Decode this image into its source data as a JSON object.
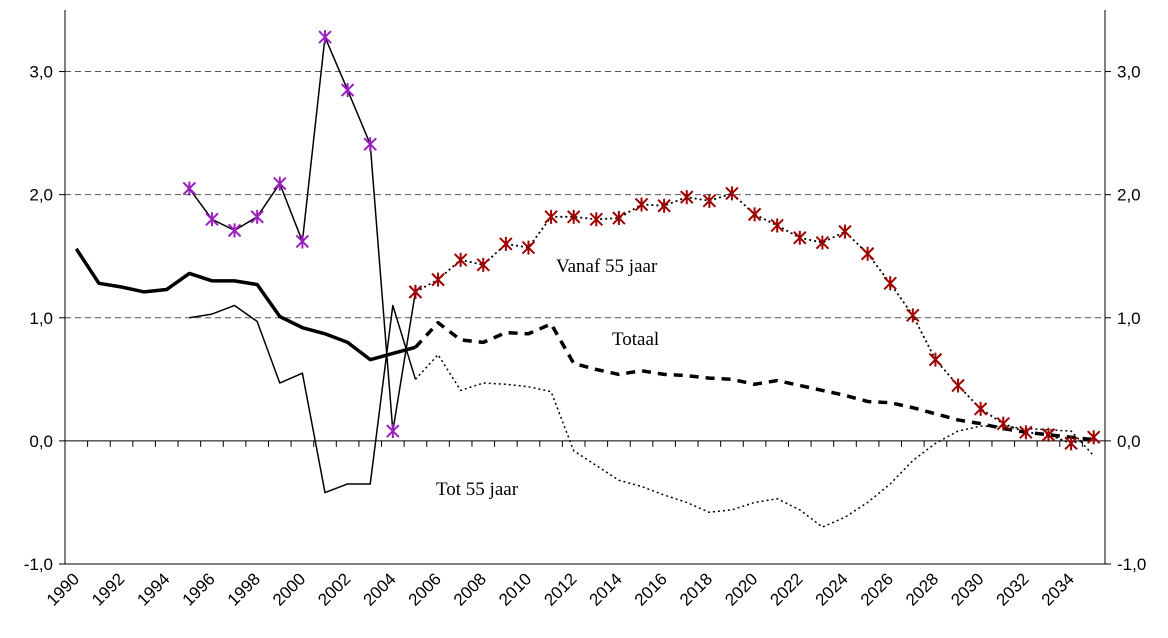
{
  "chart_data": {
    "type": "line",
    "categories": [
      "1990",
      null,
      "1992",
      null,
      "1994",
      null,
      "1996",
      null,
      "1998",
      null,
      "2000",
      null,
      "2002",
      null,
      "2004",
      null,
      "2006",
      null,
      "2008",
      null,
      "2010",
      null,
      "2012",
      null,
      "2014",
      null,
      "2016",
      null,
      "2018",
      null,
      "2020",
      null,
      "2022",
      null,
      "2024",
      null,
      "2026",
      null,
      "2028",
      null,
      "2030",
      null,
      "2032",
      null,
      "2034",
      null
    ],
    "ylim": [
      -1,
      3.5
    ],
    "yticks": [
      {
        "value": -1,
        "label": "-1,0"
      },
      {
        "value": 0,
        "label": "0,0"
      },
      {
        "value": 1,
        "label": "1,0"
      },
      {
        "value": 2,
        "label": "2,0"
      },
      {
        "value": 3,
        "label": "3,0"
      }
    ],
    "y2lim": [
      -1,
      3.5
    ],
    "y2ticks": [
      {
        "value": -1,
        "label": "-1,0"
      },
      {
        "value": 0,
        "label": "0,0"
      },
      {
        "value": 1,
        "label": "1,0"
      },
      {
        "value": 2,
        "label": "2,0"
      },
      {
        "value": 3,
        "label": "3,0"
      }
    ],
    "grid": true,
    "annotations": [
      "Vanaf 55 jaar",
      "Totaal",
      "Tot 55 jaar"
    ],
    "series": [
      {
        "color": "#000000",
        "width": 3.5,
        "dash": "none",
        "values": [
          1.56,
          1.28,
          1.25,
          1.21,
          1.23,
          1.36,
          1.3,
          1.3,
          1.27,
          1.01,
          0.92,
          0.87,
          0.8,
          0.66,
          0.71,
          0.76,
          null,
          null,
          null,
          null,
          null,
          null,
          null,
          null,
          null,
          null,
          null,
          null,
          null,
          null,
          null,
          null,
          null,
          null,
          null,
          null,
          null,
          null,
          null,
          null,
          null,
          null,
          null,
          null,
          null,
          null
        ]
      },
      {
        "color": "#000000",
        "width": 1.5,
        "dash": "none",
        "values": [
          null,
          null,
          null,
          null,
          null,
          1.0,
          1.03,
          1.1,
          0.97,
          0.47,
          0.55,
          -0.42,
          -0.35,
          -0.35,
          1.1,
          0.5,
          null,
          null,
          null,
          null,
          null,
          null,
          null,
          null,
          null,
          null,
          null,
          null,
          null,
          null,
          null,
          null,
          null,
          null,
          null,
          null,
          null,
          null,
          null,
          null,
          null,
          null,
          null,
          null,
          null,
          null
        ]
      },
      {
        "color": "#000000",
        "width": 1.5,
        "dash": "none",
        "marker": "asterisk",
        "marker_color": "#9b1fc0",
        "values": [
          null,
          null,
          null,
          null,
          null,
          2.05,
          1.8,
          1.71,
          1.82,
          2.09,
          1.62,
          3.28,
          2.85,
          2.41,
          0.08,
          1.21,
          null,
          null,
          null,
          null,
          null,
          null,
          null,
          null,
          null,
          null,
          null,
          null,
          null,
          null,
          null,
          null,
          null,
          null,
          null,
          null,
          null,
          null,
          null,
          null,
          null,
          null,
          null,
          null,
          null,
          null
        ]
      },
      {
        "color": "#000000",
        "width": 3.5,
        "dash": "9 7",
        "values": [
          null,
          null,
          null,
          null,
          null,
          null,
          null,
          null,
          null,
          null,
          null,
          null,
          null,
          null,
          null,
          0.76,
          0.96,
          0.82,
          0.8,
          0.88,
          0.87,
          0.95,
          0.63,
          0.58,
          0.54,
          0.57,
          0.54,
          0.53,
          0.51,
          0.5,
          0.46,
          0.49,
          0.45,
          0.41,
          0.37,
          0.32,
          0.31,
          0.27,
          0.22,
          0.17,
          0.14,
          0.1,
          0.07,
          0.05,
          0.03,
          0.01
        ]
      },
      {
        "color": "#000000",
        "width": 1.5,
        "dash": "2 3",
        "values": [
          null,
          null,
          null,
          null,
          null,
          null,
          null,
          null,
          null,
          null,
          null,
          null,
          null,
          null,
          null,
          0.5,
          0.7,
          0.41,
          0.47,
          0.46,
          0.44,
          0.4,
          -0.08,
          -0.2,
          -0.32,
          -0.37,
          -0.44,
          -0.5,
          -0.58,
          -0.56,
          -0.5,
          -0.47,
          -0.56,
          -0.7,
          -0.62,
          -0.5,
          -0.35,
          -0.16,
          -0.02,
          0.08,
          0.12,
          0.12,
          0.1,
          0.09,
          0.08,
          -0.12
        ]
      },
      {
        "color": "#000000",
        "width": 1.8,
        "dash": "2 3",
        "marker": "asterisk",
        "marker_color": "#a00000",
        "values": [
          null,
          null,
          null,
          null,
          null,
          null,
          null,
          null,
          null,
          null,
          null,
          null,
          null,
          null,
          null,
          1.21,
          1.31,
          1.47,
          1.43,
          1.6,
          1.57,
          1.82,
          1.82,
          1.8,
          1.81,
          1.92,
          1.91,
          1.98,
          1.95,
          2.01,
          1.84,
          1.75,
          1.65,
          1.61,
          1.7,
          1.52,
          1.28,
          1.02,
          0.66,
          0.45,
          0.26,
          0.14,
          0.07,
          0.05,
          -0.02,
          0.03
        ]
      }
    ]
  }
}
